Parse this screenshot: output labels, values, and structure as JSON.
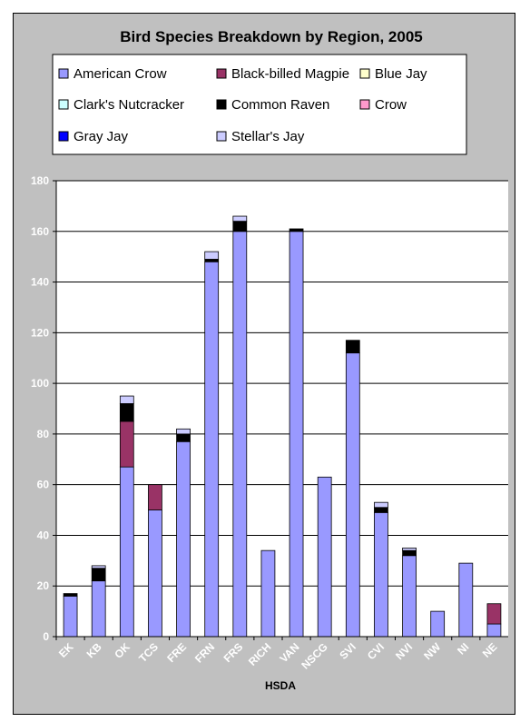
{
  "chart_data": {
    "type": "bar",
    "stacked": true,
    "title": "Bird Species Breakdown by Region, 2005",
    "xlabel": "HSDA",
    "ylabel": "",
    "ylim": [
      0,
      180
    ],
    "yticks": [
      0,
      20,
      40,
      60,
      80,
      100,
      120,
      140,
      160,
      180
    ],
    "grid": true,
    "legend_position": "top",
    "categories": [
      "EK",
      "KB",
      "OK",
      "TCS",
      "FRE",
      "FRN",
      "FRS",
      "RICH",
      "VAN",
      "NSCG",
      "SVI",
      "CVI",
      "NVI",
      "NW",
      "NI",
      "NE"
    ],
    "series": [
      {
        "name": "American Crow",
        "color": "#9999ff",
        "values": [
          16,
          22,
          67,
          50,
          77,
          148,
          160,
          34,
          160,
          63,
          112,
          49,
          32,
          10,
          29,
          5
        ]
      },
      {
        "name": "Black-billed Magpie",
        "color": "#993366",
        "values": [
          0,
          0,
          18,
          10,
          0,
          0,
          0,
          0,
          0,
          0,
          0,
          0,
          0,
          0,
          0,
          8
        ]
      },
      {
        "name": "Blue Jay",
        "color": "#ffffcc",
        "values": [
          0,
          0,
          0,
          0,
          0,
          0,
          0,
          0,
          0,
          0,
          0,
          0,
          0,
          0,
          0,
          0
        ]
      },
      {
        "name": "Clark's Nutcracker",
        "color": "#ccffff",
        "values": [
          0,
          0,
          0,
          0,
          0,
          0,
          0,
          0,
          0,
          0,
          0,
          0,
          0,
          0,
          0,
          0
        ]
      },
      {
        "name": "Common Raven",
        "color": "#000000",
        "values": [
          1,
          5,
          7,
          0,
          3,
          1,
          4,
          0,
          1,
          0,
          5,
          2,
          2,
          0,
          0,
          0
        ]
      },
      {
        "name": "Crow",
        "color": "#ff99cc",
        "values": [
          0,
          0,
          0,
          0,
          0,
          0,
          0,
          0,
          0,
          0,
          0,
          0,
          0,
          0,
          0,
          0
        ]
      },
      {
        "name": "Gray Jay",
        "color": "#0000ff",
        "values": [
          0,
          0,
          0,
          0,
          0,
          0,
          0,
          0,
          0,
          0,
          0,
          0,
          0,
          0,
          0,
          0
        ]
      },
      {
        "name": "Stellar's Jay",
        "color": "#ccccff",
        "values": [
          0,
          1,
          3,
          0,
          2,
          3,
          2,
          0,
          0,
          0,
          0,
          2,
          1,
          0,
          0,
          0
        ]
      }
    ],
    "colors": {
      "chart_background": "#c0c0c0",
      "plot_background": "#ffffff",
      "legend_background": "#ffffff",
      "axis_text": "#ffffff",
      "bar_outline": "#000000"
    }
  }
}
